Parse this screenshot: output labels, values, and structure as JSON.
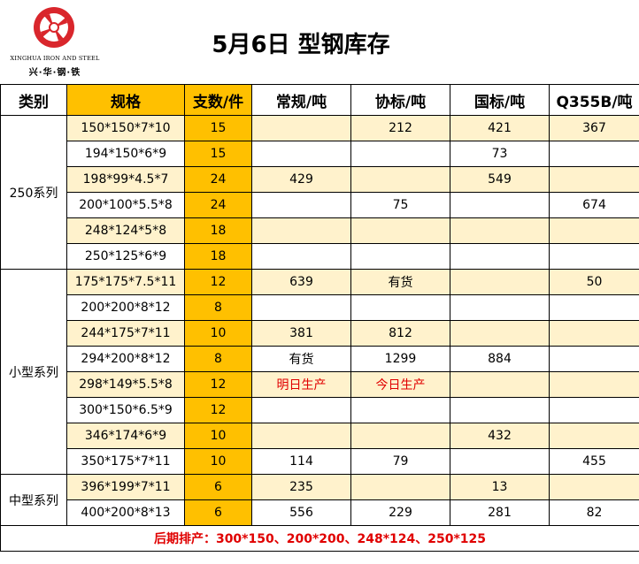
{
  "logo": {
    "alt": "xinghua-logo",
    "en_text": "XINGHUA IRON AND STEEL",
    "cn_text": "兴·华·钢·铁",
    "color": "#d9262c"
  },
  "title": "5月6日  型钢库存",
  "columns": [
    "类别",
    "规格",
    "支数/件",
    "常规/吨",
    "协标/吨",
    "国标/吨",
    "Q355B/吨"
  ],
  "groups": [
    {
      "name": "250系列",
      "rows": [
        {
          "spec": "150*150*7*10",
          "count": "15",
          "regular": "",
          "xie": "212",
          "guo": "421",
          "q355b": "367",
          "shaded": true
        },
        {
          "spec": "194*150*6*9",
          "count": "15",
          "regular": "",
          "xie": "",
          "guo": "73",
          "q355b": "",
          "shaded": false
        },
        {
          "spec": "198*99*4.5*7",
          "count": "24",
          "regular": "429",
          "xie": "",
          "guo": "549",
          "q355b": "",
          "shaded": true
        },
        {
          "spec": "200*100*5.5*8",
          "count": "24",
          "regular": "",
          "xie": "75",
          "guo": "",
          "q355b": "674",
          "shaded": false
        },
        {
          "spec": "248*124*5*8",
          "count": "18",
          "regular": "",
          "xie": "",
          "guo": "",
          "q355b": "",
          "shaded": true
        },
        {
          "spec": "250*125*6*9",
          "count": "18",
          "regular": "",
          "xie": "",
          "guo": "",
          "q355b": "",
          "shaded": false
        }
      ]
    },
    {
      "name": "小型系列",
      "rows": [
        {
          "spec": "175*175*7.5*11",
          "count": "12",
          "regular": "639",
          "xie": "有货",
          "guo": "",
          "q355b": "50",
          "shaded": true
        },
        {
          "spec": "200*200*8*12",
          "count": "8",
          "regular": "",
          "xie": "",
          "guo": "",
          "q355b": "",
          "shaded": false
        },
        {
          "spec": "244*175*7*11",
          "count": "10",
          "regular": "381",
          "xie": "812",
          "guo": "",
          "q355b": "",
          "shaded": true
        },
        {
          "spec": "294*200*8*12",
          "count": "8",
          "regular": "有货",
          "xie": "1299",
          "guo": "884",
          "q355b": "",
          "shaded": false
        },
        {
          "spec": "298*149*5.5*8",
          "count": "12",
          "regular": "明日生产",
          "xie": "今日生产",
          "guo": "",
          "q355b": "",
          "shaded": true,
          "red": true
        },
        {
          "spec": "300*150*6.5*9",
          "count": "12",
          "regular": "",
          "xie": "",
          "guo": "",
          "q355b": "",
          "shaded": false
        },
        {
          "spec": "346*174*6*9",
          "count": "10",
          "regular": "",
          "xie": "",
          "guo": "432",
          "q355b": "",
          "shaded": true
        },
        {
          "spec": "350*175*7*11",
          "count": "10",
          "regular": "114",
          "xie": "79",
          "guo": "",
          "q355b": "455",
          "shaded": false
        }
      ]
    },
    {
      "name": "中型系列",
      "rows": [
        {
          "spec": "396*199*7*11",
          "count": "6",
          "regular": "235",
          "xie": "",
          "guo": "13",
          "q355b": "",
          "shaded": true
        },
        {
          "spec": "400*200*8*13",
          "count": "6",
          "regular": "556",
          "xie": "229",
          "guo": "281",
          "q355b": "82",
          "shaded": false
        }
      ]
    }
  ],
  "footer": "后期排产：300*150、200*200、248*124、250*125",
  "colors": {
    "header_orange": "#ffc000",
    "row_shade": "#fff2cc",
    "count_orange": "#ffc000",
    "alert_red": "#e00000"
  }
}
